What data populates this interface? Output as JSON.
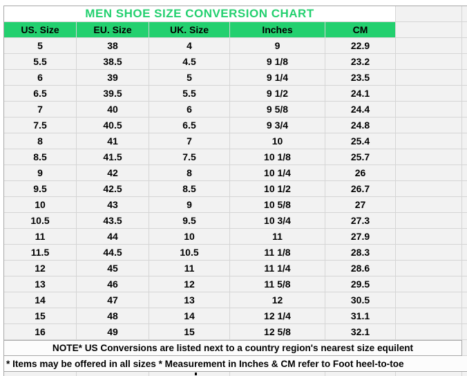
{
  "title": "MEN SHOE SIZE CONVERSION CHART",
  "table": {
    "columns": [
      "US. Size",
      "EU. Size",
      "UK. Size",
      "Inches",
      "CM"
    ],
    "rows": [
      [
        "5",
        "38",
        "4",
        "9",
        "22.9"
      ],
      [
        "5.5",
        "38.5",
        "4.5",
        "9 1/8",
        "23.2"
      ],
      [
        "6",
        "39",
        "5",
        "9 1/4",
        "23.5"
      ],
      [
        "6.5",
        "39.5",
        "5.5",
        "9 1/2",
        "24.1"
      ],
      [
        "7",
        "40",
        "6",
        "9 5/8",
        "24.4"
      ],
      [
        "7.5",
        "40.5",
        "6.5",
        "9 3/4",
        "24.8"
      ],
      [
        "8",
        "41",
        "7",
        "10",
        "25.4"
      ],
      [
        "8.5",
        "41.5",
        "7.5",
        "10 1/8",
        "25.7"
      ],
      [
        "9",
        "42",
        "8",
        "10 1/4",
        "26"
      ],
      [
        "9.5",
        "42.5",
        "8.5",
        "10 1/2",
        "26.7"
      ],
      [
        "10",
        "43",
        "9",
        "10 5/8",
        "27"
      ],
      [
        "10.5",
        "43.5",
        "9.5",
        "10 3/4",
        "27.3"
      ],
      [
        "11",
        "44",
        "10",
        "11",
        "27.9"
      ],
      [
        "11.5",
        "44.5",
        "10.5",
        "11 1/8",
        "28.3"
      ],
      [
        "12",
        "45",
        "11",
        "11 1/4",
        "28.6"
      ],
      [
        "13",
        "46",
        "12",
        "11 5/8",
        "29.5"
      ],
      [
        "14",
        "47",
        "13",
        "12",
        "30.5"
      ],
      [
        "15",
        "48",
        "14",
        "12 1/4",
        "31.1"
      ],
      [
        "16",
        "49",
        "15",
        "12 5/8",
        "32.1"
      ]
    ]
  },
  "notes": {
    "note1": "NOTE* US Conversions are listed next to a country region's nearest size equilent",
    "note2": "* Items may be offered in all sizes * Measurement in Inches & CM refer to Foot heel-to-toe"
  },
  "colors": {
    "accent_green": "#23d06f",
    "cell_background": "#f2f2f2",
    "grid_line": "#d5d5d5",
    "outer_border": "#a8a8a8",
    "title_text": "#23d06f",
    "body_text": "#000000"
  },
  "chart_data": {
    "type": "table",
    "title": "MEN SHOE SIZE CONVERSION CHART",
    "columns": [
      "US. Size",
      "EU. Size",
      "UK. Size",
      "Inches",
      "CM"
    ],
    "rows": [
      [
        "5",
        "38",
        "4",
        "9",
        "22.9"
      ],
      [
        "5.5",
        "38.5",
        "4.5",
        "9 1/8",
        "23.2"
      ],
      [
        "6",
        "39",
        "5",
        "9 1/4",
        "23.5"
      ],
      [
        "6.5",
        "39.5",
        "5.5",
        "9 1/2",
        "24.1"
      ],
      [
        "7",
        "40",
        "6",
        "9 5/8",
        "24.4"
      ],
      [
        "7.5",
        "40.5",
        "6.5",
        "9 3/4",
        "24.8"
      ],
      [
        "8",
        "41",
        "7",
        "10",
        "25.4"
      ],
      [
        "8.5",
        "41.5",
        "7.5",
        "10 1/8",
        "25.7"
      ],
      [
        "9",
        "42",
        "8",
        "10 1/4",
        "26"
      ],
      [
        "9.5",
        "42.5",
        "8.5",
        "10 1/2",
        "26.7"
      ],
      [
        "10",
        "43",
        "9",
        "10 5/8",
        "27"
      ],
      [
        "10.5",
        "43.5",
        "9.5",
        "10 3/4",
        "27.3"
      ],
      [
        "11",
        "44",
        "10",
        "11",
        "27.9"
      ],
      [
        "11.5",
        "44.5",
        "10.5",
        "11 1/8",
        "28.3"
      ],
      [
        "12",
        "45",
        "11",
        "11 1/4",
        "28.6"
      ],
      [
        "13",
        "46",
        "12",
        "11 5/8",
        "29.5"
      ],
      [
        "14",
        "47",
        "13",
        "12",
        "30.5"
      ],
      [
        "15",
        "48",
        "14",
        "12 1/4",
        "31.1"
      ],
      [
        "16",
        "49",
        "15",
        "12 5/8",
        "32.1"
      ]
    ],
    "annotations": [
      "NOTE* US Conversions are listed next to a country region's nearest size equilent",
      "* Items may be offered in all sizes * Measurement in Inches & CM refer to Foot heel-to-toe"
    ]
  }
}
